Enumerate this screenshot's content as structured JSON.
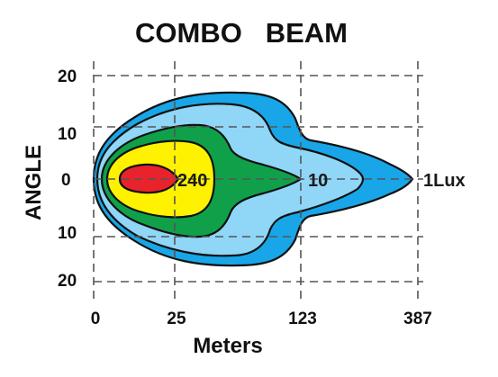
{
  "chart_data": {
    "type": "contour",
    "title": "COMBO   BEAM",
    "xlabel": "Meters",
    "ylabel": "ANGLE",
    "x_ticks": [
      "0",
      "25",
      "123",
      "387"
    ],
    "y_ticks": [
      "20",
      "10",
      "0",
      "10",
      "20"
    ],
    "grid": true,
    "contours": [
      {
        "name": "1Lux",
        "color": "#18a6e8",
        "label_shown": true
      },
      {
        "name": "",
        "color": "#8fd6f7",
        "label_shown": false
      },
      {
        "name": "10",
        "color": "#11a04a",
        "label_shown": true
      },
      {
        "name": "",
        "color": "#fff200",
        "label_shown": false
      },
      {
        "name": "240",
        "color": "#e8232b",
        "label_shown": true
      }
    ]
  }
}
